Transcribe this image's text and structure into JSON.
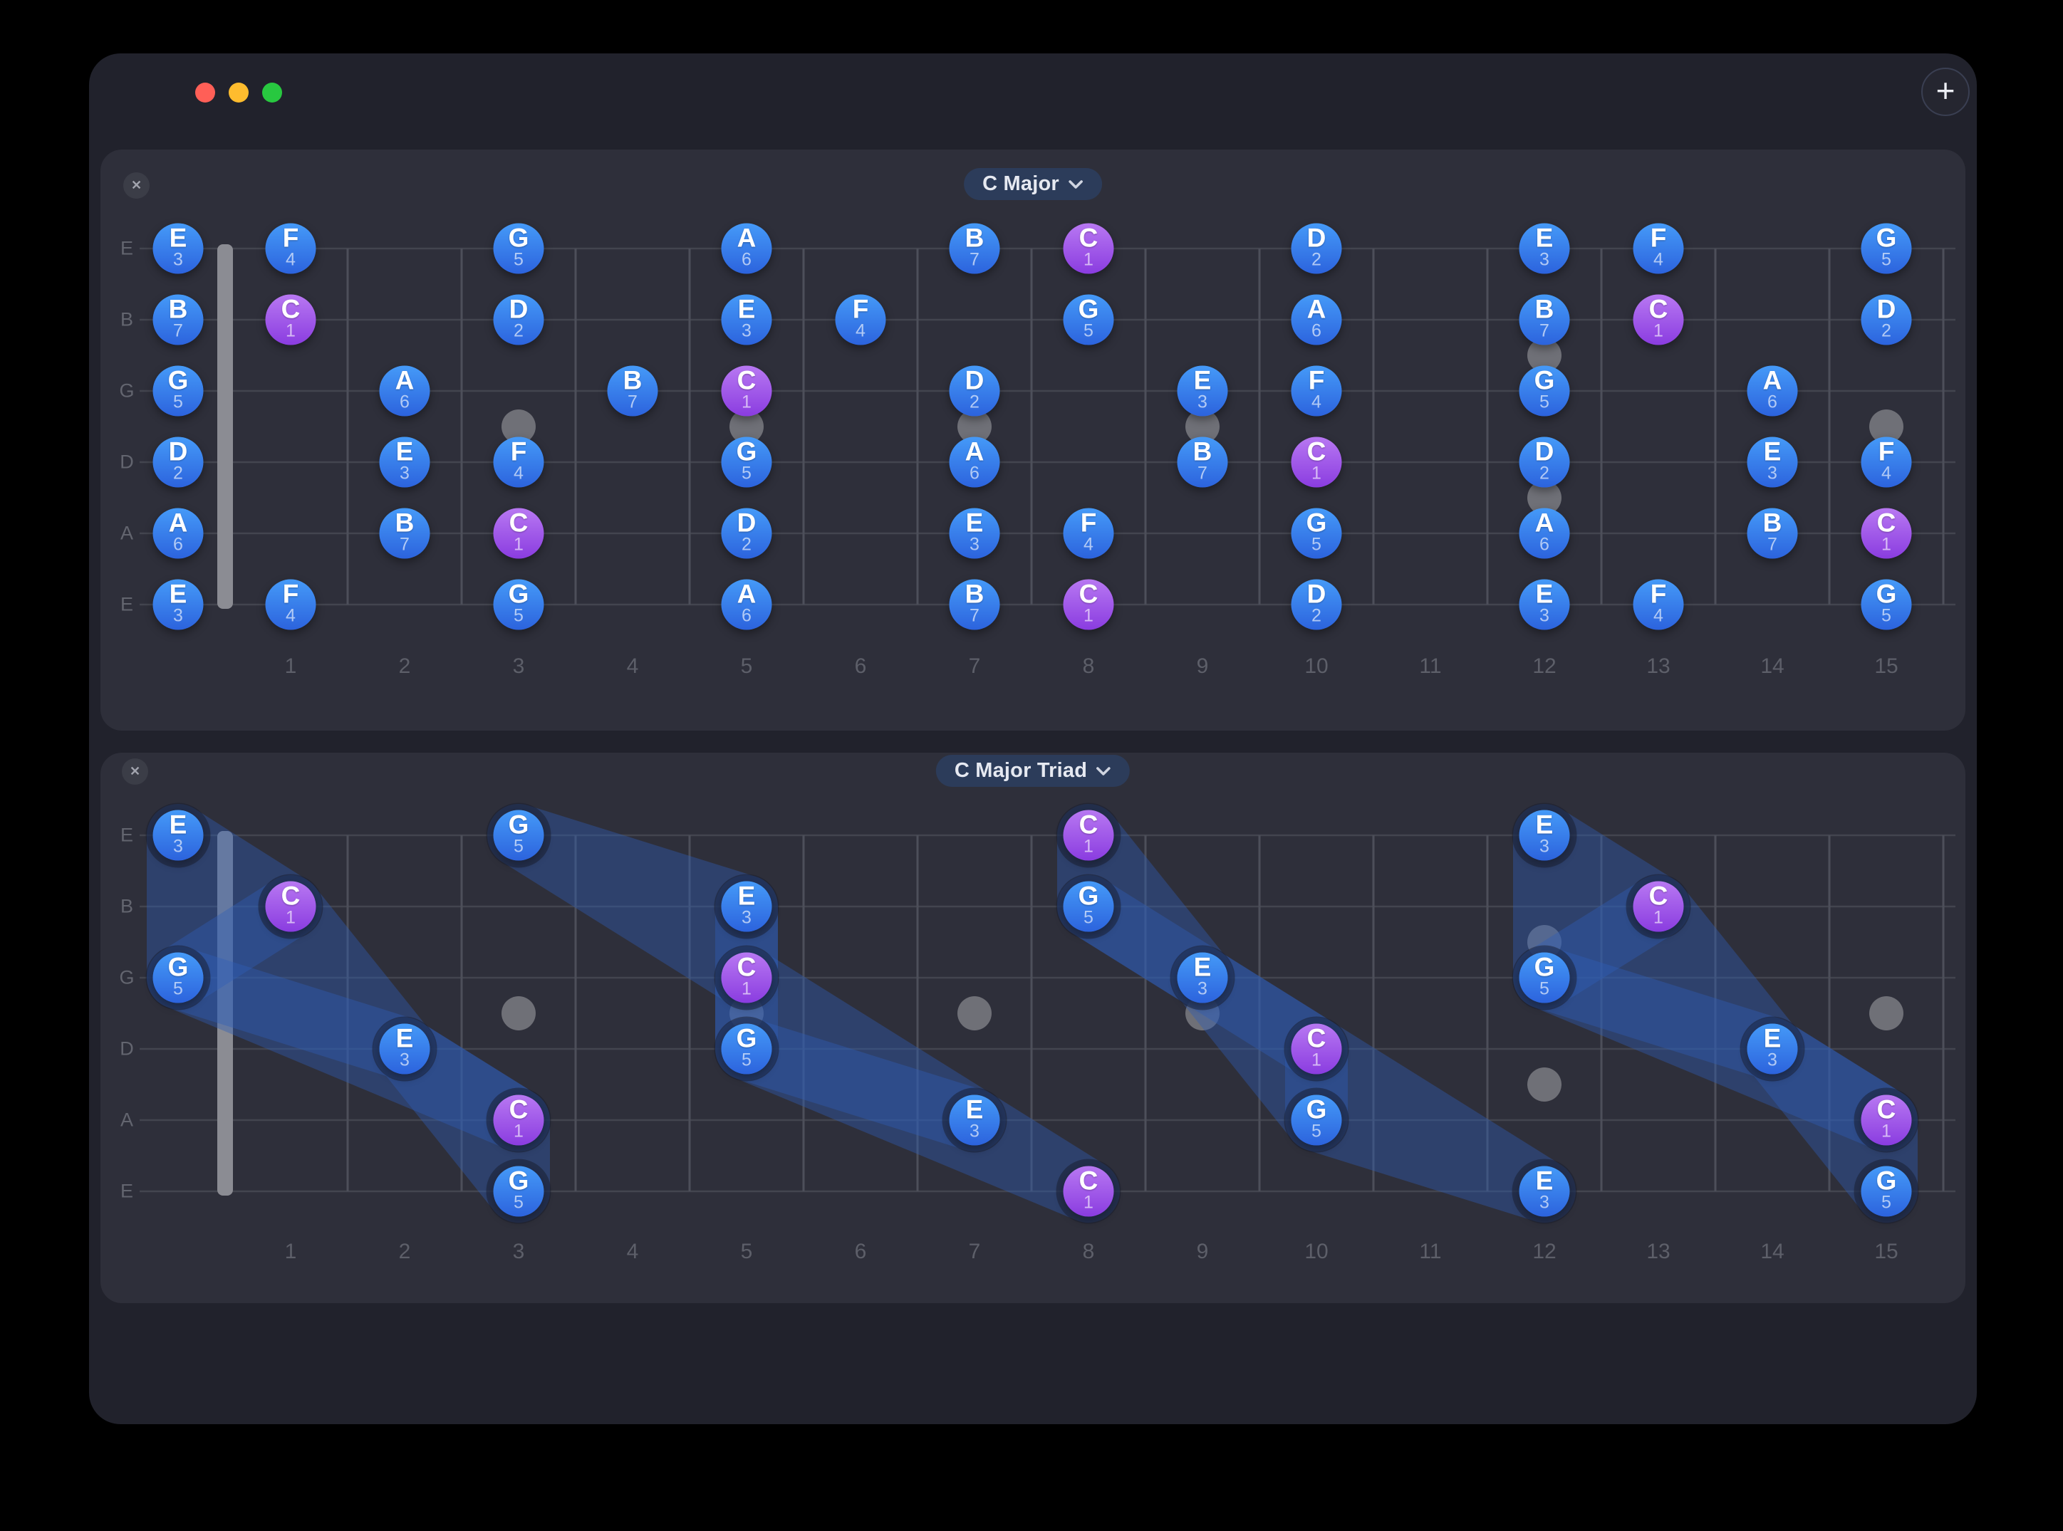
{
  "window": {
    "add_button_label": "+",
    "traffic_lights": [
      "close",
      "minimize",
      "zoom"
    ]
  },
  "fretboard": {
    "string_labels": [
      "E",
      "B",
      "G",
      "D",
      "A",
      "E"
    ],
    "fret_numbers": [
      1,
      2,
      3,
      4,
      5,
      6,
      7,
      8,
      9,
      10,
      11,
      12,
      13,
      14,
      15
    ],
    "marker_frets": [
      {
        "fret": 3,
        "double": false
      },
      {
        "fret": 5,
        "double": false
      },
      {
        "fret": 7,
        "double": false
      },
      {
        "fret": 9,
        "double": false
      },
      {
        "fret": 12,
        "double": true
      },
      {
        "fret": 15,
        "double": false
      }
    ]
  },
  "panels": [
    {
      "id": "scale",
      "selector_label": "C Major",
      "close_label": "✕",
      "notes": [
        [
          0,
          0,
          "E",
          "3"
        ],
        [
          0,
          1,
          "F",
          "4"
        ],
        [
          0,
          3,
          "G",
          "5"
        ],
        [
          0,
          5,
          "A",
          "6"
        ],
        [
          0,
          7,
          "B",
          "7"
        ],
        [
          0,
          8,
          "C",
          "1"
        ],
        [
          0,
          10,
          "D",
          "2"
        ],
        [
          0,
          12,
          "E",
          "3"
        ],
        [
          0,
          13,
          "F",
          "4"
        ],
        [
          0,
          15,
          "G",
          "5"
        ],
        [
          1,
          0,
          "B",
          "7"
        ],
        [
          1,
          1,
          "C",
          "1"
        ],
        [
          1,
          3,
          "D",
          "2"
        ],
        [
          1,
          5,
          "E",
          "3"
        ],
        [
          1,
          6,
          "F",
          "4"
        ],
        [
          1,
          8,
          "G",
          "5"
        ],
        [
          1,
          10,
          "A",
          "6"
        ],
        [
          1,
          12,
          "B",
          "7"
        ],
        [
          1,
          13,
          "C",
          "1"
        ],
        [
          1,
          15,
          "D",
          "2"
        ],
        [
          2,
          0,
          "G",
          "5"
        ],
        [
          2,
          2,
          "A",
          "6"
        ],
        [
          2,
          4,
          "B",
          "7"
        ],
        [
          2,
          5,
          "C",
          "1"
        ],
        [
          2,
          7,
          "D",
          "2"
        ],
        [
          2,
          9,
          "E",
          "3"
        ],
        [
          2,
          10,
          "F",
          "4"
        ],
        [
          2,
          12,
          "G",
          "5"
        ],
        [
          2,
          14,
          "A",
          "6"
        ],
        [
          3,
          0,
          "D",
          "2"
        ],
        [
          3,
          2,
          "E",
          "3"
        ],
        [
          3,
          3,
          "F",
          "4"
        ],
        [
          3,
          5,
          "G",
          "5"
        ],
        [
          3,
          7,
          "A",
          "6"
        ],
        [
          3,
          9,
          "B",
          "7"
        ],
        [
          3,
          10,
          "C",
          "1"
        ],
        [
          3,
          12,
          "D",
          "2"
        ],
        [
          3,
          14,
          "E",
          "3"
        ],
        [
          3,
          15,
          "F",
          "4"
        ],
        [
          4,
          0,
          "A",
          "6"
        ],
        [
          4,
          2,
          "B",
          "7"
        ],
        [
          4,
          3,
          "C",
          "1"
        ],
        [
          4,
          5,
          "D",
          "2"
        ],
        [
          4,
          7,
          "E",
          "3"
        ],
        [
          4,
          8,
          "F",
          "4"
        ],
        [
          4,
          10,
          "G",
          "5"
        ],
        [
          4,
          12,
          "A",
          "6"
        ],
        [
          4,
          14,
          "B",
          "7"
        ],
        [
          4,
          15,
          "C",
          "1"
        ],
        [
          5,
          0,
          "E",
          "3"
        ],
        [
          5,
          1,
          "F",
          "4"
        ],
        [
          5,
          3,
          "G",
          "5"
        ],
        [
          5,
          5,
          "A",
          "6"
        ],
        [
          5,
          7,
          "B",
          "7"
        ],
        [
          5,
          8,
          "C",
          "1"
        ],
        [
          5,
          10,
          "D",
          "2"
        ],
        [
          5,
          12,
          "E",
          "3"
        ],
        [
          5,
          13,
          "F",
          "4"
        ],
        [
          5,
          15,
          "G",
          "5"
        ]
      ],
      "shapes": []
    },
    {
      "id": "triad",
      "selector_label": "C Major Triad",
      "close_label": "✕",
      "notes": [
        [
          0,
          0,
          "E",
          "3"
        ],
        [
          0,
          3,
          "G",
          "5"
        ],
        [
          0,
          8,
          "C",
          "1"
        ],
        [
          0,
          12,
          "E",
          "3"
        ],
        [
          1,
          1,
          "C",
          "1"
        ],
        [
          1,
          5,
          "E",
          "3"
        ],
        [
          1,
          8,
          "G",
          "5"
        ],
        [
          1,
          13,
          "C",
          "1"
        ],
        [
          2,
          0,
          "G",
          "5"
        ],
        [
          2,
          5,
          "C",
          "1"
        ],
        [
          2,
          9,
          "E",
          "3"
        ],
        [
          2,
          12,
          "G",
          "5"
        ],
        [
          3,
          2,
          "E",
          "3"
        ],
        [
          3,
          5,
          "G",
          "5"
        ],
        [
          3,
          10,
          "C",
          "1"
        ],
        [
          3,
          14,
          "E",
          "3"
        ],
        [
          4,
          3,
          "C",
          "1"
        ],
        [
          4,
          7,
          "E",
          "3"
        ],
        [
          4,
          10,
          "G",
          "5"
        ],
        [
          4,
          15,
          "C",
          "1"
        ],
        [
          5,
          3,
          "G",
          "5"
        ],
        [
          5,
          8,
          "C",
          "1"
        ],
        [
          5,
          12,
          "E",
          "3"
        ],
        [
          5,
          15,
          "G",
          "5"
        ]
      ],
      "shapes": [
        [
          [
            2,
            0
          ],
          [
            1,
            1
          ],
          [
            0,
            0
          ]
        ],
        [
          [
            2,
            5
          ],
          [
            1,
            5
          ],
          [
            0,
            3
          ]
        ],
        [
          [
            2,
            9
          ],
          [
            1,
            8
          ],
          [
            0,
            8
          ]
        ],
        [
          [
            2,
            12
          ],
          [
            1,
            13
          ],
          [
            0,
            12
          ]
        ],
        [
          [
            3,
            2
          ],
          [
            2,
            0
          ],
          [
            1,
            1
          ]
        ],
        [
          [
            3,
            5
          ],
          [
            2,
            5
          ],
          [
            1,
            5
          ]
        ],
        [
          [
            3,
            10
          ],
          [
            2,
            9
          ],
          [
            1,
            8
          ]
        ],
        [
          [
            3,
            14
          ],
          [
            2,
            12
          ],
          [
            1,
            13
          ]
        ],
        [
          [
            4,
            3
          ],
          [
            3,
            2
          ],
          [
            2,
            0
          ]
        ],
        [
          [
            4,
            7
          ],
          [
            3,
            5
          ],
          [
            2,
            5
          ]
        ],
        [
          [
            4,
            10
          ],
          [
            3,
            10
          ],
          [
            2,
            9
          ]
        ],
        [
          [
            4,
            15
          ],
          [
            3,
            14
          ],
          [
            2,
            12
          ]
        ],
        [
          [
            5,
            3
          ],
          [
            4,
            3
          ],
          [
            3,
            2
          ]
        ],
        [
          [
            5,
            8
          ],
          [
            4,
            7
          ],
          [
            3,
            5
          ]
        ],
        [
          [
            5,
            12
          ],
          [
            4,
            10
          ],
          [
            3,
            10
          ]
        ],
        [
          [
            5,
            15
          ],
          [
            4,
            15
          ],
          [
            3,
            14
          ]
        ]
      ]
    }
  ],
  "colors": {
    "note_blue_top": "#459af8",
    "note_blue_bottom": "#2c63dd",
    "note_root_top": "#b878f2",
    "note_root_bottom": "#8a3ce0",
    "shape_fill": "#2f5eb7",
    "selector_bg": "#2c3c5a",
    "traffic_red": "#ff5f57",
    "traffic_yellow": "#febc2e",
    "traffic_green": "#28c840"
  }
}
